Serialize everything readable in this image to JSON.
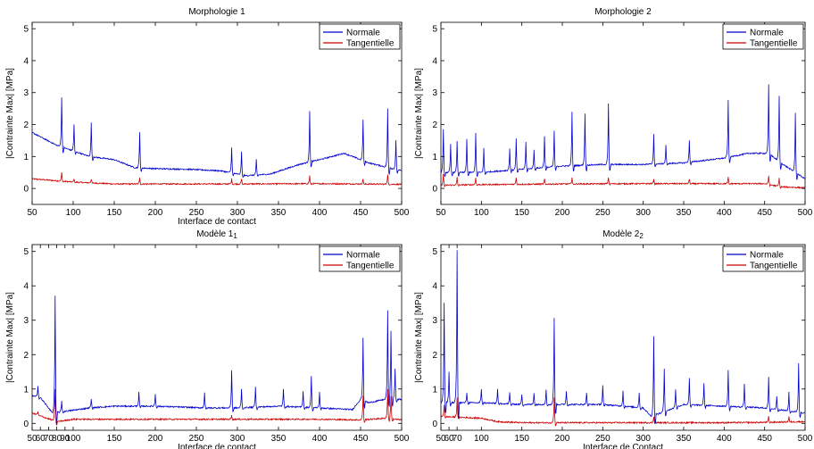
{
  "chart_data": [
    {
      "type": "line",
      "title": "Morphologie 1",
      "title_sub": "",
      "xlabel": "Interface de contact",
      "ylabel": "|Contrainte Max| [MPa]",
      "xlim": [
        50,
        500
      ],
      "ylim": [
        -0.5,
        5.2
      ],
      "xticks": [
        50,
        100,
        150,
        200,
        250,
        300,
        350,
        400,
        450,
        500
      ],
      "yticks": [
        0,
        1,
        2,
        3,
        4,
        5
      ],
      "legend_position": "top-right",
      "series": [
        {
          "name": "Normale",
          "color": "#0000cc",
          "baseline": [
            [
              50,
              1.75
            ],
            [
              80,
              1.35
            ],
            [
              120,
              1.0
            ],
            [
              150,
              0.9
            ],
            [
              175,
              0.65
            ],
            [
              200,
              0.62
            ],
            [
              240,
              0.6
            ],
            [
              280,
              0.55
            ],
            [
              310,
              0.4
            ],
            [
              340,
              0.45
            ],
            [
              375,
              0.75
            ],
            [
              400,
              0.9
            ],
            [
              430,
              1.1
            ],
            [
              460,
              0.8
            ],
            [
              500,
              0.55
            ]
          ],
          "spikes": [
            [
              86,
              2.85
            ],
            [
              101,
              2.0
            ],
            [
              122,
              2.05
            ],
            [
              181,
              1.78
            ],
            [
              293,
              1.3
            ],
            [
              305,
              1.15
            ],
            [
              323,
              0.9
            ],
            [
              388,
              2.4
            ],
            [
              453,
              2.15
            ],
            [
              483,
              2.5
            ],
            [
              493,
              1.5
            ]
          ]
        },
        {
          "name": "Tangentielle",
          "color": "#cc0000",
          "baseline": [
            [
              50,
              0.3
            ],
            [
              100,
              0.2
            ],
            [
              150,
              0.14
            ],
            [
              200,
              0.14
            ],
            [
              300,
              0.14
            ],
            [
              400,
              0.15
            ],
            [
              500,
              0.13
            ]
          ],
          "spikes": [
            [
              86,
              0.5
            ],
            [
              101,
              0.3
            ],
            [
              122,
              0.3
            ],
            [
              181,
              0.35
            ],
            [
              293,
              0.3
            ],
            [
              305,
              0.3
            ],
            [
              388,
              0.4
            ],
            [
              453,
              0.3
            ],
            [
              483,
              0.45
            ]
          ]
        }
      ]
    },
    {
      "type": "line",
      "title": "Morphologie 2",
      "title_sub": "",
      "xlabel": "",
      "ylabel": "|Contrainte Max| [MPa]",
      "xlim": [
        50,
        500
      ],
      "ylim": [
        -0.5,
        5.2
      ],
      "xticks": [
        50,
        100,
        150,
        200,
        250,
        300,
        350,
        400,
        450,
        500
      ],
      "yticks": [
        0,
        1,
        2,
        3,
        4,
        5
      ],
      "legend_position": "top-right",
      "series": [
        {
          "name": "Normale",
          "color": "#0000cc",
          "baseline": [
            [
              50,
              0.5
            ],
            [
              100,
              0.5
            ],
            [
              150,
              0.6
            ],
            [
              200,
              0.7
            ],
            [
              250,
              0.75
            ],
            [
              300,
              0.75
            ],
            [
              350,
              0.8
            ],
            [
              400,
              0.95
            ],
            [
              430,
              1.1
            ],
            [
              455,
              1.1
            ],
            [
              470,
              0.8
            ],
            [
              500,
              0.3
            ]
          ],
          "spikes": [
            [
              53,
              1.85
            ],
            [
              62,
              1.4
            ],
            [
              70,
              1.5
            ],
            [
              82,
              1.55
            ],
            [
              93,
              1.75
            ],
            [
              103,
              1.25
            ],
            [
              135,
              1.25
            ],
            [
              143,
              1.55
            ],
            [
              155,
              1.45
            ],
            [
              165,
              1.2
            ],
            [
              178,
              1.65
            ],
            [
              190,
              1.8
            ],
            [
              212,
              2.4
            ],
            [
              228,
              2.35
            ],
            [
              257,
              2.65
            ],
            [
              313,
              1.7
            ],
            [
              328,
              1.35
            ],
            [
              357,
              1.5
            ],
            [
              405,
              2.75
            ],
            [
              455,
              3.25
            ],
            [
              468,
              2.9
            ],
            [
              488,
              2.35
            ]
          ]
        },
        {
          "name": "Tangentielle",
          "color": "#cc0000",
          "baseline": [
            [
              50,
              0.1
            ],
            [
              100,
              0.12
            ],
            [
              200,
              0.14
            ],
            [
              300,
              0.15
            ],
            [
              400,
              0.15
            ],
            [
              450,
              0.15
            ],
            [
              470,
              0.05
            ],
            [
              500,
              0.02
            ]
          ],
          "spikes": [
            [
              53,
              0.45
            ],
            [
              70,
              0.35
            ],
            [
              93,
              0.35
            ],
            [
              143,
              0.35
            ],
            [
              178,
              0.3
            ],
            [
              212,
              0.35
            ],
            [
              257,
              0.35
            ],
            [
              313,
              0.3
            ],
            [
              357,
              0.3
            ],
            [
              405,
              0.35
            ],
            [
              455,
              0.4
            ],
            [
              468,
              0.35
            ]
          ]
        }
      ]
    },
    {
      "type": "line",
      "title": "Modèle 1",
      "title_sub": "1",
      "xlabel": "Interface de contact",
      "ylabel": "|Contrainte Max| [MPa]",
      "xlim": [
        50,
        500
      ],
      "ylim": [
        -0.2,
        5.2
      ],
      "xticks": [
        50,
        60,
        70,
        80,
        90,
        100,
        150,
        200,
        250,
        300,
        350,
        400,
        450,
        500
      ],
      "yticks": [
        0,
        1,
        2,
        3,
        4,
        5
      ],
      "legend_position": "top-right",
      "series": [
        {
          "name": "Normale",
          "color": "#0000cc",
          "baseline": [
            [
              50,
              0.8
            ],
            [
              60,
              0.75
            ],
            [
              75,
              0.3
            ],
            [
              90,
              0.35
            ],
            [
              120,
              0.45
            ],
            [
              150,
              0.5
            ],
            [
              200,
              0.5
            ],
            [
              260,
              0.45
            ],
            [
              300,
              0.45
            ],
            [
              350,
              0.5
            ],
            [
              400,
              0.45
            ],
            [
              440,
              0.4
            ],
            [
              450,
              0.7
            ],
            [
              460,
              0.6
            ],
            [
              480,
              0.7
            ],
            [
              500,
              0.7
            ]
          ],
          "spikes": [
            [
              57,
              1.1
            ],
            [
              78,
              3.7
            ],
            [
              86,
              0.65
            ],
            [
              122,
              0.7
            ],
            [
              180,
              0.9
            ],
            [
              200,
              0.85
            ],
            [
              260,
              0.9
            ],
            [
              293,
              1.55
            ],
            [
              305,
              1.0
            ],
            [
              322,
              1.05
            ],
            [
              356,
              1.0
            ],
            [
              380,
              0.95
            ],
            [
              390,
              1.4
            ],
            [
              400,
              0.9
            ],
            [
              453,
              2.5
            ],
            [
              483,
              3.3
            ],
            [
              487,
              2.7
            ],
            [
              492,
              1.6
            ]
          ]
        },
        {
          "name": "Tangentielle",
          "color": "#cc0000",
          "baseline": [
            [
              50,
              0.3
            ],
            [
              80,
              0.05
            ],
            [
              100,
              0.12
            ],
            [
              200,
              0.12
            ],
            [
              300,
              0.12
            ],
            [
              400,
              0.12
            ],
            [
              450,
              0.1
            ],
            [
              480,
              0.15
            ],
            [
              500,
              0.1
            ]
          ],
          "spikes": [
            [
              78,
              1.0
            ],
            [
              57,
              0.35
            ],
            [
              293,
              0.25
            ],
            [
              453,
              0.8
            ],
            [
              483,
              1.0
            ],
            [
              487,
              0.8
            ]
          ]
        }
      ]
    },
    {
      "type": "line",
      "title": "Modèle 2",
      "title_sub": "2",
      "xlabel": "Interface de Contact",
      "ylabel": "|Contrainte Max| [MPa]",
      "xlim": [
        50,
        500
      ],
      "ylim": [
        -0.2,
        5.2
      ],
      "xticks": [
        50,
        60,
        70,
        100,
        150,
        200,
        250,
        300,
        350,
        400,
        450,
        500
      ],
      "yticks": [
        0,
        1,
        2,
        3,
        4,
        5
      ],
      "legend_position": "top-right",
      "series": [
        {
          "name": "Normale",
          "color": "#0000cc",
          "baseline": [
            [
              50,
              0.6
            ],
            [
              100,
              0.6
            ],
            [
              150,
              0.55
            ],
            [
              200,
              0.55
            ],
            [
              250,
              0.55
            ],
            [
              300,
              0.45
            ],
            [
              310,
              0.2
            ],
            [
              350,
              0.55
            ],
            [
              400,
              0.5
            ],
            [
              450,
              0.45
            ],
            [
              500,
              0.3
            ]
          ],
          "spikes": [
            [
              54,
              3.5
            ],
            [
              60,
              1.5
            ],
            [
              70,
              5.05
            ],
            [
              82,
              0.9
            ],
            [
              100,
              1.0
            ],
            [
              120,
              1.0
            ],
            [
              135,
              0.9
            ],
            [
              150,
              0.85
            ],
            [
              165,
              0.9
            ],
            [
              180,
              1.0
            ],
            [
              190,
              3.05
            ],
            [
              205,
              0.95
            ],
            [
              230,
              0.9
            ],
            [
              250,
              1.1
            ],
            [
              275,
              0.95
            ],
            [
              295,
              0.9
            ],
            [
              313,
              2.55
            ],
            [
              326,
              1.6
            ],
            [
              340,
              1.0
            ],
            [
              357,
              1.3
            ],
            [
              375,
              1.15
            ],
            [
              405,
              1.55
            ],
            [
              425,
              1.15
            ],
            [
              455,
              1.35
            ],
            [
              465,
              0.8
            ],
            [
              480,
              0.9
            ],
            [
              492,
              1.75
            ]
          ]
        },
        {
          "name": "Tangentielle",
          "color": "#cc0000",
          "baseline": [
            [
              50,
              0.2
            ],
            [
              100,
              0.15
            ],
            [
              120,
              0.05
            ],
            [
              150,
              0.02
            ],
            [
              200,
              0.02
            ],
            [
              300,
              0.02
            ],
            [
              400,
              0.02
            ],
            [
              450,
              0.03
            ],
            [
              500,
              0.05
            ]
          ],
          "spikes": [
            [
              54,
              0.55
            ],
            [
              70,
              0.75
            ],
            [
              190,
              0.75
            ],
            [
              313,
              0.2
            ],
            [
              455,
              0.2
            ],
            [
              480,
              0.2
            ]
          ]
        }
      ]
    }
  ]
}
